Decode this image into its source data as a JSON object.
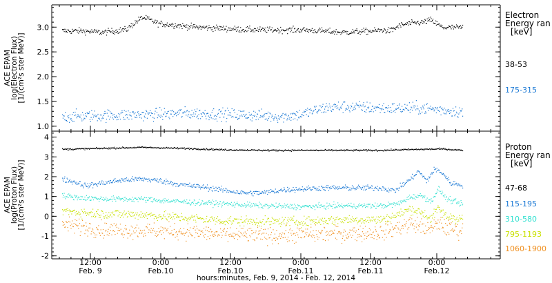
{
  "chart_data": [
    {
      "type": "scatter",
      "panel": "electron",
      "ylabel": [
        "ACE EPAM",
        "log(Electron Flux)",
        "[1/(cm²s ster MeV)]"
      ],
      "ylim": [
        0.9,
        3.45
      ],
      "yticks": [
        1.0,
        1.5,
        2.0,
        2.5,
        3.0
      ],
      "ytick_labels": [
        "1.0",
        "1.5",
        "2.0",
        "2.5",
        "3.0"
      ],
      "legend": {
        "title": [
          "Electron",
          "Energy ran",
          "[keV]"
        ],
        "entries": [
          {
            "label": "38-53",
            "color": "#000000"
          },
          {
            "label": "175-315",
            "color": "#1a78d4"
          }
        ]
      },
      "series": [
        {
          "range": "38-53",
          "color": "#000000",
          "noise": 0.03,
          "x": [
            0.0,
            0.05,
            0.1,
            0.13,
            0.16,
            0.19,
            0.2,
            0.21,
            0.24,
            0.28,
            0.3,
            0.35,
            0.4,
            0.45,
            0.5,
            0.55,
            0.6,
            0.65,
            0.7,
            0.75,
            0.78,
            0.8,
            0.82,
            0.84,
            0.86,
            0.89,
            0.9,
            0.92,
            0.95,
            1.0
          ],
          "y": [
            2.93,
            2.93,
            2.9,
            2.93,
            2.96,
            3.15,
            3.2,
            3.18,
            3.08,
            3.05,
            3.03,
            3.0,
            2.98,
            2.96,
            2.95,
            2.95,
            2.95,
            2.93,
            2.9,
            2.92,
            2.93,
            2.95,
            2.93,
            3.03,
            3.07,
            3.1,
            3.1,
            3.15,
            3.0,
            3.0
          ]
        },
        {
          "range": "175-315",
          "color": "#1a78d4",
          "noise": 0.06,
          "x": [
            0.0,
            0.1,
            0.2,
            0.25,
            0.3,
            0.4,
            0.5,
            0.55,
            0.6,
            0.62,
            0.66,
            0.7,
            0.8,
            0.9,
            1.0
          ],
          "y": [
            1.2,
            1.22,
            1.24,
            1.25,
            1.27,
            1.25,
            1.22,
            1.2,
            1.25,
            1.3,
            1.38,
            1.4,
            1.37,
            1.37,
            1.3
          ]
        }
      ]
    },
    {
      "type": "scatter",
      "panel": "proton",
      "xlabel": "hours:minutes, Feb.  9, 2014 - Feb. 12, 2014",
      "xticks": [
        {
          "time": "12:00",
          "date": "Feb. 9"
        },
        {
          "time": "0:00",
          "date": "Feb.10"
        },
        {
          "time": "12:00",
          "date": "Feb.10"
        },
        {
          "time": "0:00",
          "date": "Feb.11"
        },
        {
          "time": "12:00",
          "date": "Feb.11"
        },
        {
          "time": "0:00",
          "date": "Feb.12"
        }
      ],
      "ylabel": [
        "ACE EPAM",
        "log(Proton Flux)",
        "[1/(cm²s ster MeV)]"
      ],
      "ylim": [
        -2.15,
        4.3
      ],
      "yticks": [
        -2,
        -1,
        0,
        1,
        2,
        3,
        4
      ],
      "ytick_labels": [
        "-2",
        "-1",
        "0",
        "1",
        "2",
        "3",
        "4"
      ],
      "legend": {
        "title": [
          "Proton",
          "Energy ran",
          "[keV]"
        ],
        "entries": [
          {
            "label": "47-68",
            "color": "#000000"
          },
          {
            "label": "115-195",
            "color": "#1a78d4"
          },
          {
            "label": "310-580",
            "color": "#30e0d0"
          },
          {
            "label": "795-1193",
            "color": "#c8e000"
          },
          {
            "label": "1060-1900",
            "color": "#f09020"
          }
        ]
      },
      "series": [
        {
          "range": "47-68",
          "color": "#000000",
          "noise": 0.02,
          "x": [
            0.0,
            0.1,
            0.2,
            0.3,
            0.4,
            0.5,
            0.6,
            0.7,
            0.8,
            0.85,
            0.9,
            0.95,
            1.0
          ],
          "y": [
            3.4,
            3.45,
            3.5,
            3.45,
            3.38,
            3.35,
            3.35,
            3.35,
            3.35,
            3.38,
            3.4,
            3.42,
            3.35
          ]
        },
        {
          "range": "115-195",
          "color": "#1a78d4",
          "noise": 0.07,
          "x": [
            0.0,
            0.04,
            0.06,
            0.1,
            0.15,
            0.2,
            0.25,
            0.3,
            0.35,
            0.4,
            0.45,
            0.5,
            0.55,
            0.6,
            0.65,
            0.7,
            0.75,
            0.8,
            0.83,
            0.85,
            0.87,
            0.89,
            0.91,
            0.93,
            0.95,
            0.97,
            1.0
          ],
          "y": [
            1.9,
            1.7,
            1.55,
            1.7,
            1.85,
            1.9,
            1.8,
            1.6,
            1.5,
            1.35,
            1.2,
            1.2,
            1.35,
            1.4,
            1.45,
            1.45,
            1.45,
            1.45,
            1.3,
            1.6,
            1.9,
            2.3,
            1.8,
            2.4,
            2.2,
            1.7,
            1.6
          ]
        },
        {
          "range": "310-580",
          "color": "#30e0d0",
          "noise": 0.07,
          "x": [
            0.0,
            0.05,
            0.1,
            0.2,
            0.3,
            0.4,
            0.5,
            0.6,
            0.7,
            0.8,
            0.84,
            0.87,
            0.9,
            0.92,
            0.94,
            0.96,
            1.0
          ],
          "y": [
            1.05,
            0.95,
            0.9,
            0.88,
            0.75,
            0.65,
            0.55,
            0.5,
            0.55,
            0.55,
            0.65,
            1.0,
            1.05,
            0.75,
            1.4,
            0.9,
            0.6
          ]
        },
        {
          "range": "795-1193",
          "color": "#c8e000",
          "noise": 0.12,
          "x": [
            0.0,
            0.05,
            0.1,
            0.2,
            0.3,
            0.4,
            0.5,
            0.6,
            0.7,
            0.8,
            0.84,
            0.87,
            0.9,
            0.92,
            0.94,
            0.96,
            1.0
          ],
          "y": [
            0.3,
            0.2,
            0.15,
            0.1,
            -0.05,
            -0.2,
            -0.25,
            -0.25,
            -0.15,
            -0.15,
            0.1,
            0.4,
            0.2,
            -0.1,
            0.4,
            0.0,
            -0.1
          ]
        },
        {
          "range": "1060-1900",
          "color": "#f09020",
          "noise": 0.2,
          "x": [
            0.0,
            0.05,
            0.1,
            0.2,
            0.3,
            0.4,
            0.5,
            0.6,
            0.7,
            0.8,
            0.84,
            0.87,
            0.9,
            0.92,
            0.94,
            0.96,
            1.0
          ],
          "y": [
            -0.4,
            -0.5,
            -0.65,
            -0.7,
            -0.75,
            -0.9,
            -0.95,
            -0.9,
            -0.85,
            -0.8,
            -0.55,
            -0.35,
            -0.5,
            -0.7,
            -0.3,
            -0.6,
            -0.7
          ]
        }
      ]
    }
  ]
}
